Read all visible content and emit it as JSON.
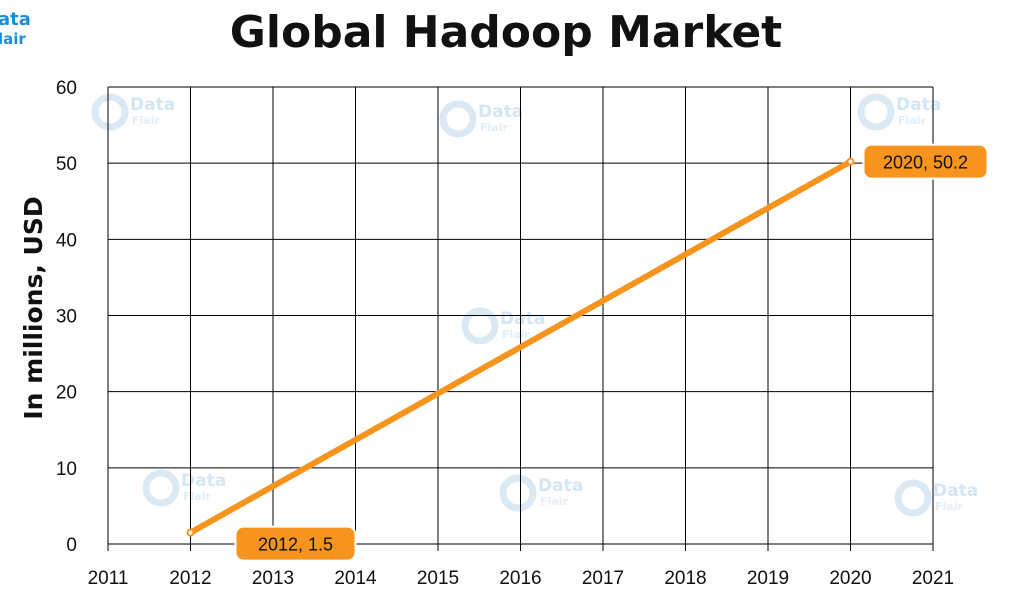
{
  "brand": {
    "logo_line1": "ata",
    "logo_line2": "lair",
    "watermark_line1": "Data",
    "watermark_line2": "Flair",
    "colors": {
      "logo": "#1a8fd6",
      "watermark": "#d4e6f4"
    }
  },
  "chart_data": {
    "type": "line",
    "title": "Global Hadoop Market",
    "xlabel": "",
    "ylabel": "In millions, USD",
    "x_ticks": [
      "2011",
      "2012",
      "2013",
      "2014",
      "2015",
      "2016",
      "2017",
      "2018",
      "2019",
      "2020",
      "2021"
    ],
    "y_ticks": [
      "0",
      "10",
      "20",
      "30",
      "40",
      "50",
      "60"
    ],
    "xlim": [
      2011,
      2021
    ],
    "ylim": [
      0,
      60
    ],
    "grid": true,
    "series": [
      {
        "name": "",
        "color": "#f7941d",
        "points": [
          {
            "x": 2012,
            "y": 1.5
          },
          {
            "x": 2020,
            "y": 50.2
          }
        ]
      }
    ],
    "annotations": [
      {
        "x": 2012,
        "y": 1.5,
        "text": "2012, 1.5",
        "placement": "below-right"
      },
      {
        "x": 2020,
        "y": 50.2,
        "text": "2020, 50.2",
        "placement": "right"
      }
    ],
    "colors": {
      "line": "#f7941d",
      "callout": "#f7941d",
      "grid": "#000000"
    }
  }
}
